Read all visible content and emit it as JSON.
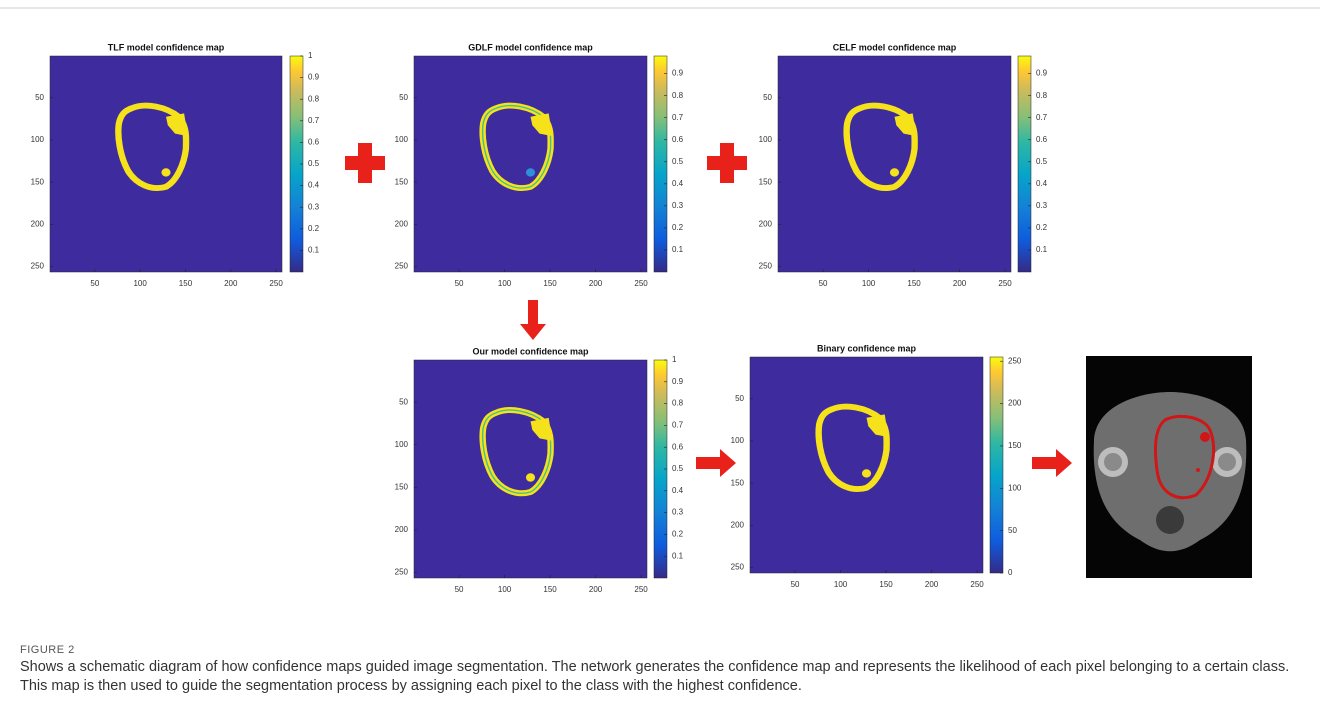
{
  "panels": [
    {
      "title": "TLF model confidence map",
      "xticks": [
        50,
        100,
        150,
        200,
        250
      ],
      "yticks": [
        50,
        100,
        150,
        200,
        250
      ],
      "colorbar_ticks": [
        0.1,
        0.2,
        0.3,
        0.4,
        0.5,
        0.6,
        0.7,
        0.8,
        0.9,
        1
      ],
      "clim": [
        0,
        1
      ]
    },
    {
      "title": "GDLF model confidence map",
      "xticks": [
        50,
        100,
        150,
        200,
        250
      ],
      "yticks": [
        50,
        100,
        150,
        200,
        250
      ],
      "colorbar_ticks": [
        0.1,
        0.2,
        0.3,
        0.4,
        0.5,
        0.6,
        0.7,
        0.8,
        0.9
      ],
      "clim": [
        0,
        0.98
      ]
    },
    {
      "title": "CELF model confidence map",
      "xticks": [
        50,
        100,
        150,
        200,
        250
      ],
      "yticks": [
        50,
        100,
        150,
        200,
        250
      ],
      "colorbar_ticks": [
        0.1,
        0.2,
        0.3,
        0.4,
        0.5,
        0.6,
        0.7,
        0.8,
        0.9
      ],
      "clim": [
        0,
        0.98
      ]
    },
    {
      "title": "Our model confidence map",
      "xticks": [
        50,
        100,
        150,
        200,
        250
      ],
      "yticks": [
        50,
        100,
        150,
        200,
        250
      ],
      "colorbar_ticks": [
        0.1,
        0.2,
        0.3,
        0.4,
        0.5,
        0.6,
        0.7,
        0.8,
        0.9,
        1
      ],
      "clim": [
        0,
        1
      ]
    },
    {
      "title": "Binary confidence map",
      "xticks": [
        50,
        100,
        150,
        200,
        250
      ],
      "yticks": [
        50,
        100,
        150,
        200,
        250
      ],
      "colorbar_ticks": [
        0,
        50,
        100,
        150,
        200,
        250
      ],
      "clim": [
        0,
        255
      ]
    }
  ],
  "caption": {
    "label": "FIGURE 2",
    "text": "Shows a schematic diagram of how confidence maps guided image segmentation. The network generates the confidence map and represents the likelihood of each pixel belonging to a certain class. This map is then used to guide the segmentation process by assigning each pixel to the class with the highest confidence."
  }
}
